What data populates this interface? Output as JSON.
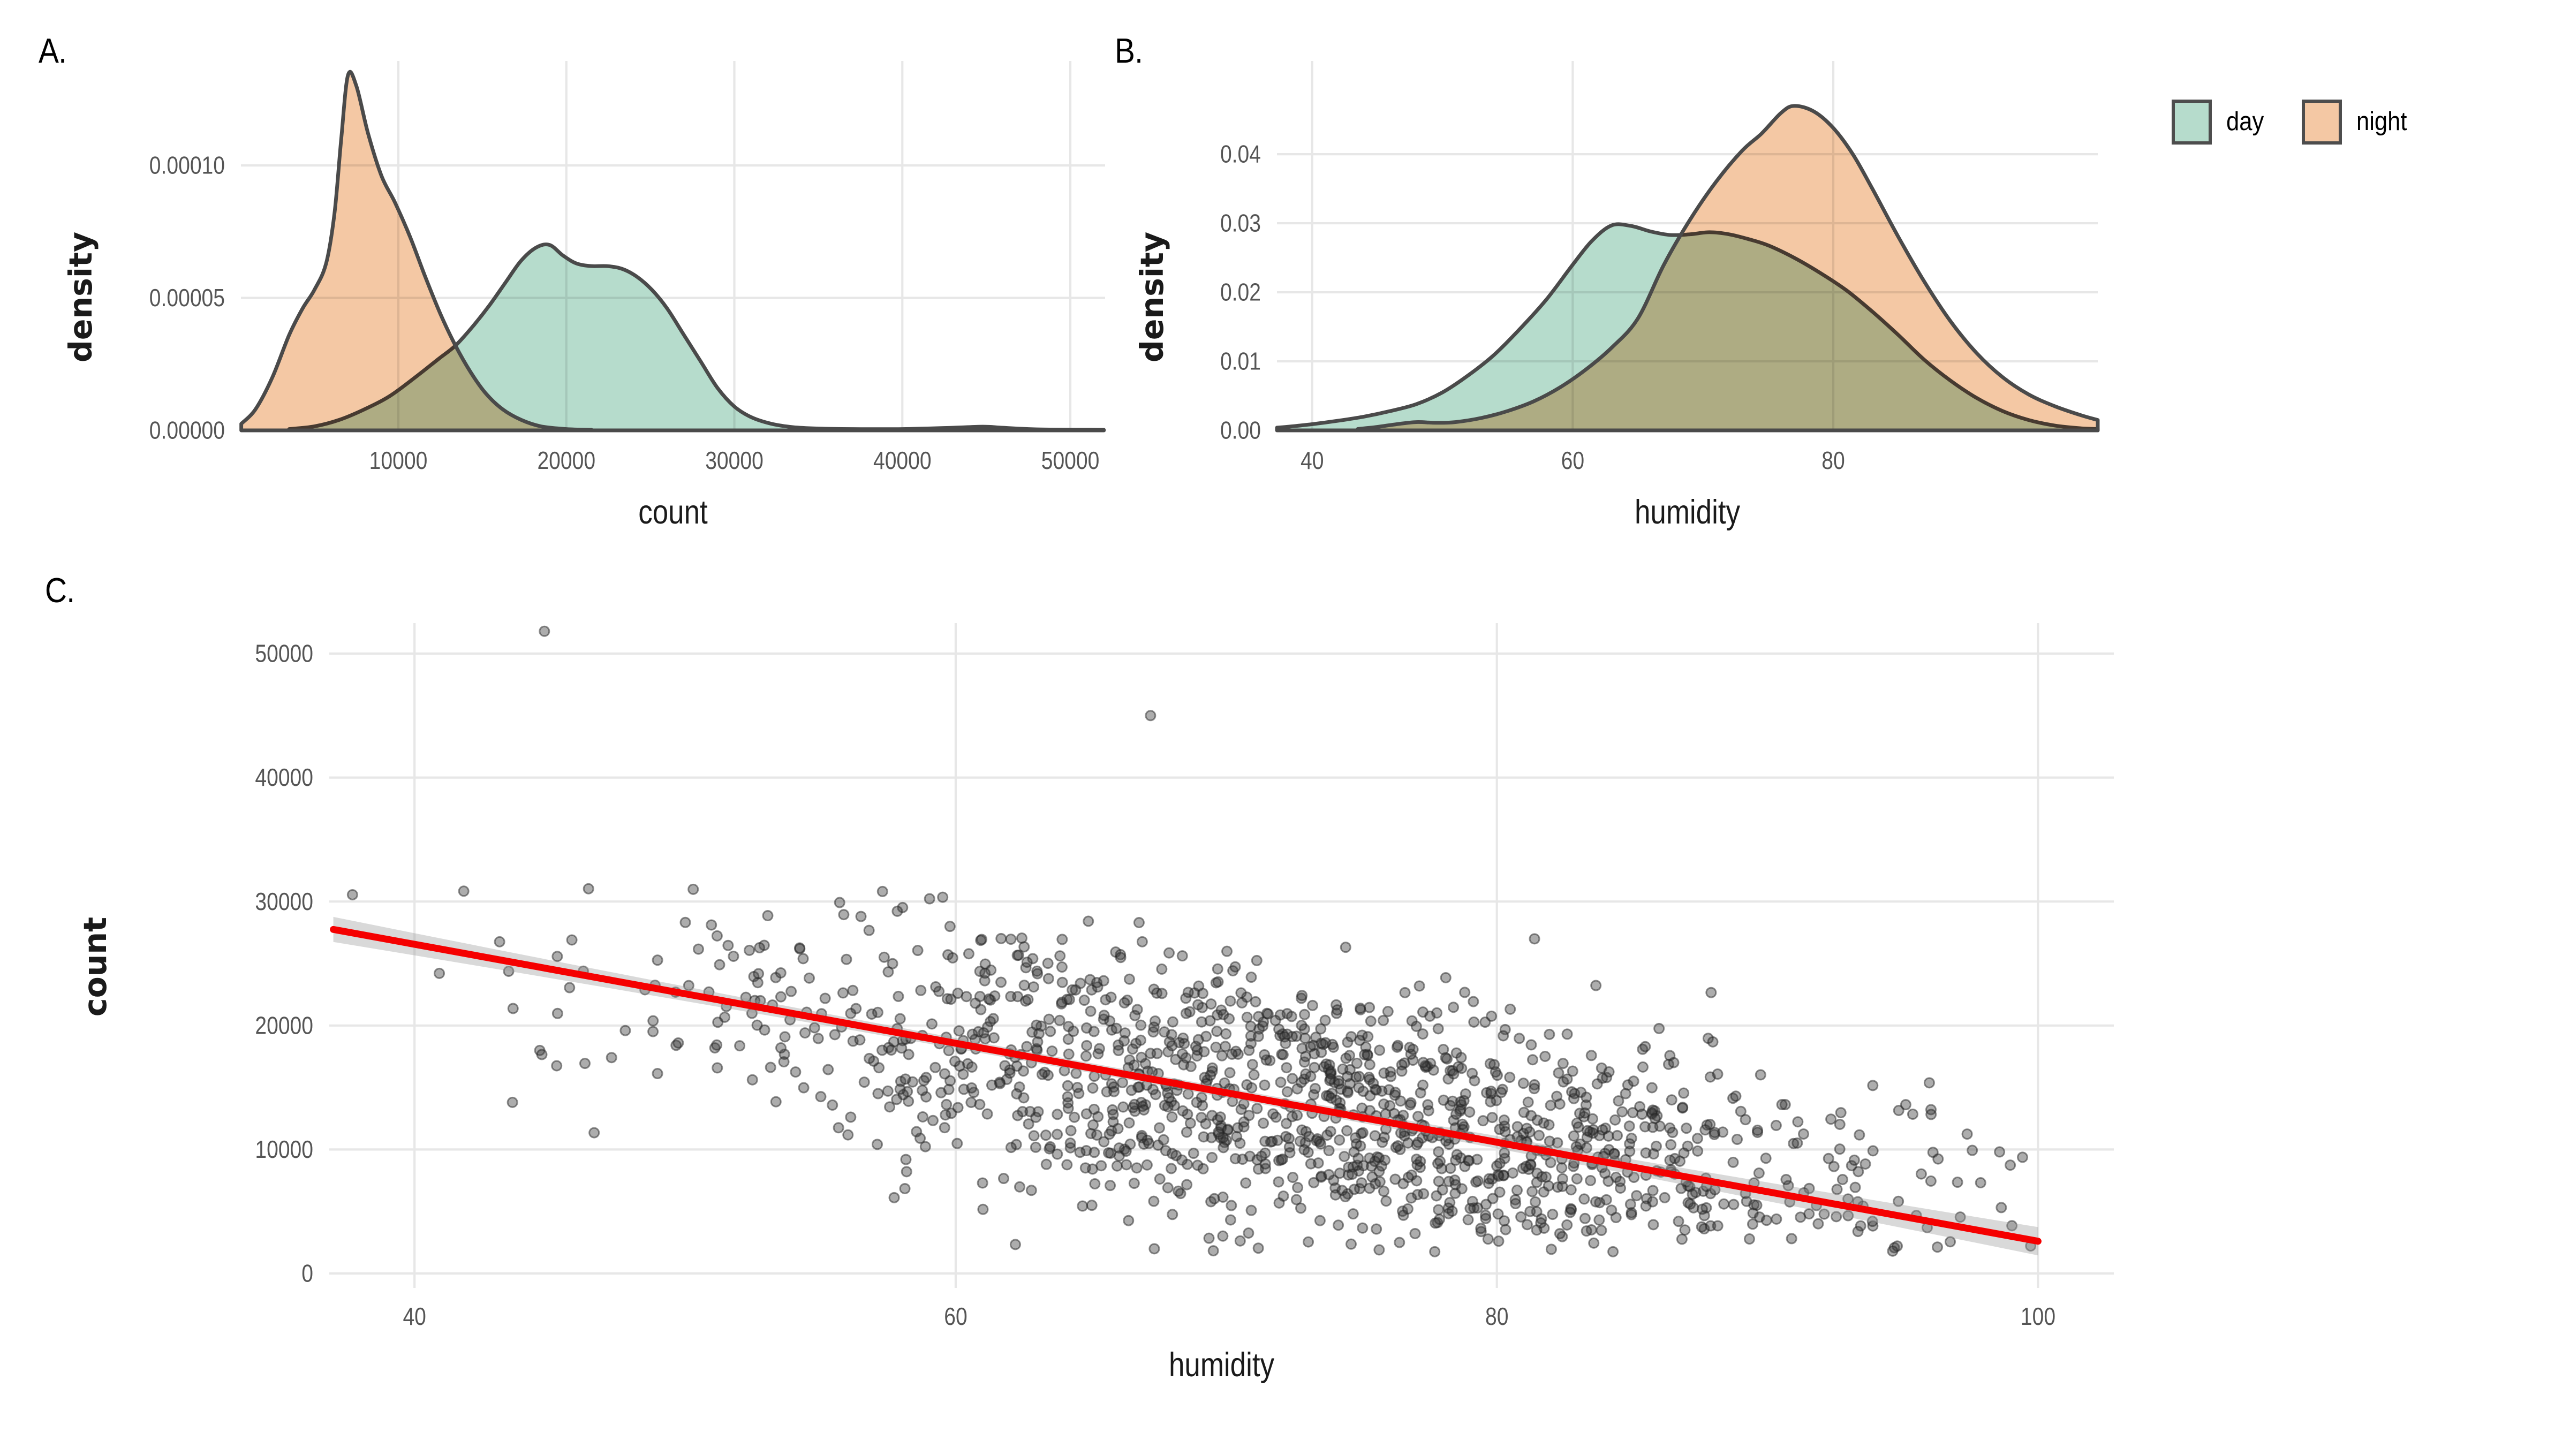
{
  "figure": {
    "background": "#ffffff",
    "panel_labels": {
      "a": "A.",
      "b": "B.",
      "c": "C."
    }
  },
  "legend": {
    "items": [
      {
        "label": "day",
        "color": "#b6dccc"
      },
      {
        "label": "night",
        "color": "#f4c8a4"
      }
    ],
    "border_color": "#4d4d4d"
  },
  "styles": {
    "grid_color": "#e7e7e7",
    "tick_label_color": "#555555",
    "axis_title_color": "#1a1a1a",
    "curve_stroke": "#4a4a4a",
    "point_fill": "#3c3c3c",
    "point_stroke": "#222222",
    "trend_color": "#f50000",
    "band_color": "#9c9c9c"
  },
  "chart_data": [
    {
      "id": "A",
      "type": "area",
      "xlabel": "count",
      "ylabel": "density",
      "xlim": [
        630,
        52070
      ],
      "ylim": [
        0,
        0.0001394
      ],
      "x_ticks": [
        {
          "v": 10000,
          "label": "10000"
        },
        {
          "v": 20000,
          "label": "20000"
        },
        {
          "v": 30000,
          "label": "30000"
        },
        {
          "v": 40000,
          "label": "40000"
        },
        {
          "v": 50000,
          "label": "50000"
        }
      ],
      "y_ticks": [
        {
          "v": 0,
          "label": "0.00000"
        },
        {
          "v": 5e-05,
          "label": "0.00005"
        },
        {
          "v": 0.0001,
          "label": "0.00010"
        }
      ],
      "series": [
        {
          "name": "day",
          "x": [
            3500,
            5000,
            6500,
            8000,
            9500,
            11000,
            12400,
            13400,
            14400,
            15400,
            16400,
            17300,
            18200,
            19000,
            19800,
            20600,
            21500,
            22400,
            23300,
            24200,
            25100,
            26000,
            27000,
            28000,
            29000,
            30000,
            31000,
            32200,
            33500,
            35000,
            37000,
            40000,
            43000,
            44800,
            46000,
            48000,
            52000
          ],
          "y": [
            5e-07,
            1.5e-06,
            4e-06,
            8e-06,
            1.3e-05,
            2e-05,
            2.7e-05,
            3.2e-05,
            3.9e-05,
            4.7e-05,
            5.6e-05,
            6.4e-05,
            6.9e-05,
            7e-05,
            6.6e-05,
            6.3e-05,
            6.2e-05,
            6.2e-05,
            6.1e-05,
            5.8e-05,
            5.3e-05,
            4.6e-05,
            3.6e-05,
            2.6e-05,
            1.6e-05,
            9e-06,
            5e-06,
            2.5e-06,
            1.2e-06,
            7e-07,
            5e-07,
            5e-07,
            1e-06,
            1.4e-06,
            1e-06,
            4e-07,
            2e-07
          ]
        },
        {
          "name": "night",
          "x": [
            650,
            1500,
            2500,
            3500,
            4300,
            5000,
            5700,
            6200,
            6600,
            7000,
            7500,
            8200,
            9000,
            9800,
            10700,
            11600,
            12500,
            13400,
            14300,
            15200,
            16200,
            17300,
            18500,
            20000,
            21500
          ],
          "y": [
            2.5e-06,
            8e-06,
            2e-05,
            3.6e-05,
            4.6e-05,
            5.3e-05,
            6.3e-05,
            8.2e-05,
            0.00011,
            0.000134,
            0.00013,
            0.000112,
            9.6e-05,
            8.6e-05,
            7.3e-05,
            5.8e-05,
            4.4e-05,
            3.2e-05,
            2.2e-05,
            1.4e-05,
            8e-06,
            4e-06,
            1.5e-06,
            5e-07,
            2e-07
          ]
        }
      ]
    },
    {
      "id": "B",
      "type": "area",
      "xlabel": "humidity",
      "ylabel": "density",
      "xlim": [
        37.3,
        100.3
      ],
      "ylim": [
        0,
        0.0535
      ],
      "x_ticks": [
        {
          "v": 40,
          "label": "40"
        },
        {
          "v": 60,
          "label": "60"
        },
        {
          "v": 80,
          "label": "80"
        }
      ],
      "y_ticks": [
        {
          "v": 0,
          "label": "0.00"
        },
        {
          "v": 0.01,
          "label": "0.01"
        },
        {
          "v": 0.02,
          "label": "0.02"
        },
        {
          "v": 0.03,
          "label": "0.03"
        },
        {
          "v": 0.04,
          "label": "0.04"
        }
      ],
      "series": [
        {
          "name": "day",
          "x": [
            37.3,
            38,
            40,
            42,
            44,
            46,
            48,
            50,
            52,
            54,
            56,
            58,
            60,
            61.5,
            63,
            64.5,
            66,
            67.5,
            69,
            70.5,
            72,
            73.5,
            75,
            77,
            79,
            81,
            83,
            85,
            87,
            89,
            91,
            93,
            95,
            97,
            99,
            100.3
          ],
          "y": [
            0.0004,
            0.0005,
            0.0009,
            0.0014,
            0.002,
            0.0028,
            0.0038,
            0.0055,
            0.008,
            0.011,
            0.0148,
            0.019,
            0.024,
            0.0275,
            0.0297,
            0.0296,
            0.0288,
            0.0283,
            0.0284,
            0.0287,
            0.0284,
            0.0277,
            0.0268,
            0.025,
            0.0228,
            0.0203,
            0.0172,
            0.0138,
            0.0102,
            0.0072,
            0.0047,
            0.0028,
            0.0015,
            0.0007,
            0.0003,
            0.0002
          ]
        },
        {
          "name": "night",
          "x": [
            43.5,
            45,
            46.5,
            48,
            49.5,
            51,
            53,
            55,
            57,
            59,
            61,
            63,
            65,
            67,
            69,
            71,
            73,
            74.5,
            76,
            77,
            78.5,
            80,
            81.5,
            83,
            85,
            87,
            89,
            91,
            93,
            95,
            97,
            99,
            100.3
          ],
          "y": [
            0.0002,
            0.0005,
            0.0009,
            0.0012,
            0.0011,
            0.0012,
            0.0018,
            0.0028,
            0.0042,
            0.0062,
            0.0088,
            0.012,
            0.0162,
            0.024,
            0.0305,
            0.036,
            0.0405,
            0.043,
            0.046,
            0.047,
            0.0462,
            0.0438,
            0.04,
            0.035,
            0.028,
            0.0215,
            0.0158,
            0.0112,
            0.0077,
            0.0052,
            0.0035,
            0.0022,
            0.0015
          ]
        }
      ]
    },
    {
      "id": "C",
      "type": "scatter",
      "xlabel": "humidity",
      "ylabel": "count",
      "xlim": [
        36.85,
        102.8
      ],
      "ylim": [
        -1166,
        52461
      ],
      "x_ticks": [
        {
          "v": 40,
          "label": "40"
        },
        {
          "v": 60,
          "label": "60"
        },
        {
          "v": 80,
          "label": "80"
        },
        {
          "v": 100,
          "label": "100"
        }
      ],
      "y_ticks": [
        {
          "v": 0,
          "label": "0"
        },
        {
          "v": 10000,
          "label": "10000"
        },
        {
          "v": 20000,
          "label": "20000"
        },
        {
          "v": 30000,
          "label": "30000"
        },
        {
          "v": 40000,
          "label": "40000"
        },
        {
          "v": 50000,
          "label": "50000"
        }
      ],
      "n_points": 1400,
      "trend": {
        "x1": 37,
        "y1": 27750,
        "x2": 100,
        "y2": 2600
      },
      "outliers": [
        [
          44.8,
          51800
        ],
        [
          67.2,
          45000
        ]
      ],
      "points_spec": {
        "seed": 20,
        "n": 1398,
        "x_mean": 73,
        "x_sd": 11.5,
        "x_min": 37,
        "x_max": 100.3,
        "intercept": 42750,
        "slope": -402,
        "noise_sd": 5300,
        "y_min": 1700,
        "y_max": 31700
      }
    }
  ]
}
